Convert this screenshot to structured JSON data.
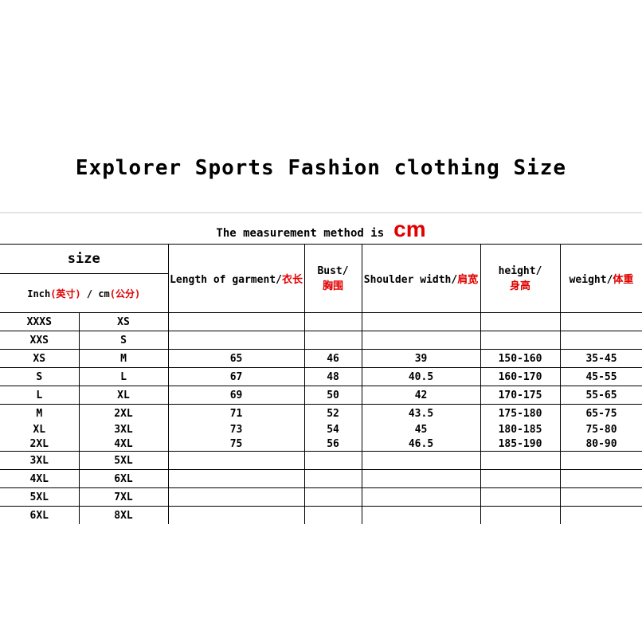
{
  "title": "Explorer Sports Fashion clothing Size",
  "method": {
    "text": "The measurement method is",
    "unit": "cm"
  },
  "header": {
    "size": "size",
    "inch": "Inch",
    "inch_cn": "(英寸)",
    "slash": " / ",
    "cm": "cm",
    "cm_cn": "(公分)",
    "length": "Length of garment/",
    "length_cn": "衣长",
    "bust": "Bust/",
    "bust_cn": "胸围",
    "shoulder": "Shoulder width/",
    "shoulder_cn": "肩宽",
    "height": "height/",
    "height_cn": "身高",
    "weight": "weight/",
    "weight_cn": "体重"
  },
  "rows": [
    [
      "XXXS",
      "XS",
      "",
      "",
      "",
      "",
      ""
    ],
    [
      "XXS",
      "S",
      "",
      "",
      "",
      "",
      ""
    ],
    [
      "XS",
      "M",
      "65",
      "46",
      "39",
      "150-160",
      "35-45"
    ],
    [
      "S",
      "L",
      "67",
      "48",
      "40.5",
      "160-170",
      "45-55"
    ],
    [
      "L",
      "XL",
      "69",
      "50",
      "42",
      "170-175",
      "55-65"
    ],
    [
      "M",
      "2XL",
      "71",
      "52",
      "43.5",
      "175-180",
      "65-75"
    ],
    [
      "XL",
      "3XL",
      "73",
      "54",
      "45",
      "180-185",
      "75-80"
    ],
    [
      "2XL",
      "4XL",
      "75",
      "56",
      "46.5",
      "185-190",
      "80-90"
    ],
    [
      "3XL",
      "5XL",
      "",
      "",
      "",
      "",
      ""
    ],
    [
      "4XL",
      "6XL",
      "",
      "",
      "",
      "",
      ""
    ],
    [
      "5XL",
      "7XL",
      "",
      "",
      "",
      "",
      ""
    ],
    [
      "6XL",
      "8XL",
      "",
      "",
      "",
      "",
      ""
    ]
  ]
}
